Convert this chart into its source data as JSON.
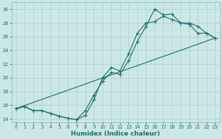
{
  "xlabel": "Humidex (Indice chaleur)",
  "bg_color": "#cce8e6",
  "line_color": "#1a6e6e",
  "grid_color": "#b8d8d6",
  "xlim": [
    -0.5,
    23.5
  ],
  "ylim": [
    13.5,
    31
  ],
  "xticks": [
    0,
    1,
    2,
    3,
    4,
    5,
    6,
    7,
    8,
    9,
    10,
    11,
    12,
    13,
    14,
    15,
    16,
    17,
    18,
    19,
    20,
    21,
    22,
    23
  ],
  "yticks": [
    14,
    16,
    18,
    20,
    22,
    24,
    26,
    28,
    30
  ],
  "line1_x": [
    0,
    1,
    2,
    3,
    4,
    5,
    6,
    7,
    8,
    9,
    10,
    11,
    12,
    13,
    14,
    15,
    16,
    17,
    18,
    19,
    20,
    21,
    22,
    23
  ],
  "line1_y": [
    15.5,
    15.8,
    15.2,
    15.2,
    14.8,
    14.4,
    14.1,
    13.9,
    15.2,
    17.5,
    19.5,
    20.8,
    20.5,
    22.5,
    25.3,
    27.5,
    30.0,
    29.2,
    29.3,
    28.0,
    27.8,
    26.5,
    26.5,
    25.8
  ],
  "line2_x": [
    0,
    1,
    2,
    3,
    4,
    5,
    6,
    7,
    8,
    9,
    10,
    11,
    12,
    13,
    14,
    15,
    16,
    17,
    18,
    19,
    20,
    21,
    22,
    23
  ],
  "line2_y": [
    15.5,
    15.8,
    15.2,
    15.2,
    14.8,
    14.4,
    14.1,
    13.9,
    14.5,
    16.8,
    20.0,
    21.5,
    21.0,
    23.5,
    26.5,
    28.0,
    28.2,
    29.0,
    28.5,
    28.0,
    28.0,
    27.5,
    26.5,
    25.8
  ],
  "line3_x": [
    0,
    23
  ],
  "line3_y": [
    15.5,
    25.8
  ]
}
